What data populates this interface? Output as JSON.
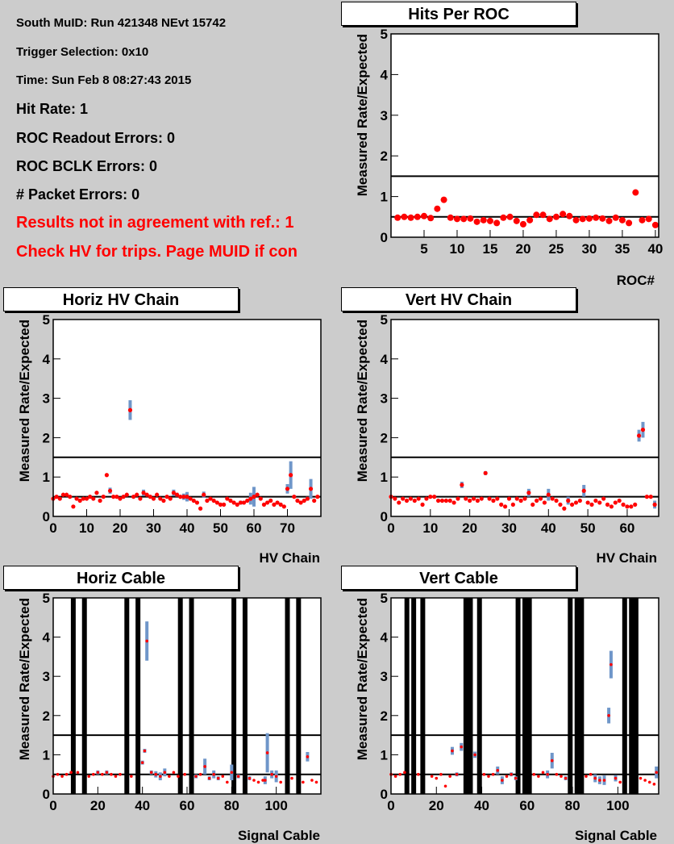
{
  "info": {
    "run_line": "South MuID: Run 421348 NEvt 15742",
    "trigger_line": "Trigger Selection: 0x10",
    "time_line": "Time: Sun Feb  8 08:27:43 2015",
    "hit_rate_line": "Hit Rate: 1",
    "roc_readout_errors_line": "ROC Readout Errors: 0",
    "roc_bclk_errors_line": "ROC BCLK Errors: 0",
    "packet_errors_line": "# Packet Errors: 0",
    "warning_line_1": "Results not in agreement with ref.: 1",
    "warning_line_2": "Check HV for trips. Page MUID if con"
  },
  "colors": {
    "marker": "#ff0000",
    "error_bar": "#6f96c9",
    "frame": "#000000",
    "background": "#cccccc"
  },
  "chart_data": [
    {
      "id": "hits_per_roc",
      "type": "scatter",
      "title": "Hits Per ROC",
      "xlabel": "ROC#",
      "ylabel": "Measured Rate/Expected",
      "xlim": [
        0,
        40.5
      ],
      "ylim": [
        0,
        5
      ],
      "xticks": [
        5,
        10,
        15,
        20,
        25,
        30,
        35,
        40
      ],
      "yticks": [
        0,
        1,
        2,
        3,
        4,
        5
      ],
      "ref_lines": [
        1.5,
        0.5
      ],
      "dead_channels": [],
      "x": [
        1,
        2,
        3,
        4,
        5,
        6,
        7,
        8,
        9,
        10,
        11,
        12,
        13,
        14,
        15,
        16,
        17,
        18,
        19,
        20,
        21,
        22,
        23,
        24,
        25,
        26,
        27,
        28,
        29,
        30,
        31,
        32,
        33,
        34,
        35,
        36,
        37,
        38,
        39,
        40
      ],
      "y": [
        0.48,
        0.5,
        0.48,
        0.5,
        0.52,
        0.47,
        0.7,
        0.92,
        0.48,
        0.45,
        0.45,
        0.46,
        0.38,
        0.42,
        0.4,
        0.35,
        0.48,
        0.5,
        0.4,
        0.32,
        0.42,
        0.55,
        0.55,
        0.45,
        0.5,
        0.57,
        0.52,
        0.42,
        0.45,
        0.46,
        0.48,
        0.46,
        0.4,
        0.48,
        0.42,
        0.35,
        1.1,
        0.42,
        0.45,
        0.3
      ],
      "err": []
    },
    {
      "id": "horiz_hv_chain",
      "type": "scatter",
      "title": "Horiz HV Chain",
      "xlabel": "HV Chain",
      "ylabel": "Measured Rate/Expected",
      "xlim": [
        0,
        80
      ],
      "ylim": [
        0,
        5
      ],
      "xticks": [
        0,
        10,
        20,
        30,
        40,
        50,
        60,
        70
      ],
      "yticks": [
        0,
        1,
        2,
        3,
        4,
        5
      ],
      "ref_lines": [
        1.5,
        0.5
      ],
      "dead_channels": [],
      "x": [
        0,
        1,
        2,
        3,
        4,
        5,
        6,
        7,
        8,
        9,
        10,
        11,
        12,
        13,
        14,
        15,
        16,
        17,
        18,
        19,
        20,
        21,
        22,
        23,
        24,
        25,
        26,
        27,
        28,
        29,
        30,
        31,
        32,
        33,
        34,
        35,
        36,
        37,
        38,
        39,
        40,
        41,
        42,
        43,
        44,
        45,
        46,
        47,
        48,
        49,
        50,
        51,
        52,
        53,
        54,
        55,
        56,
        57,
        58,
        59,
        60,
        61,
        62,
        63,
        64,
        65,
        66,
        67,
        68,
        69,
        70,
        71,
        72,
        73,
        74,
        75,
        76,
        77,
        78,
        79
      ],
      "y": [
        0.45,
        0.5,
        0.45,
        0.55,
        0.55,
        0.5,
        0.25,
        0.45,
        0.4,
        0.45,
        0.45,
        0.5,
        0.45,
        0.6,
        0.4,
        0.5,
        1.05,
        0.65,
        0.5,
        0.5,
        0.45,
        0.5,
        0.55,
        2.7,
        0.5,
        0.55,
        0.45,
        0.6,
        0.55,
        0.5,
        0.45,
        0.55,
        0.45,
        0.4,
        0.5,
        0.45,
        0.6,
        0.55,
        0.5,
        0.5,
        0.5,
        0.45,
        0.4,
        0.35,
        0.2,
        0.55,
        0.4,
        0.45,
        0.4,
        0.35,
        0.3,
        0.3,
        0.45,
        0.4,
        0.35,
        0.3,
        0.35,
        0.35,
        0.4,
        0.45,
        0.5,
        0.55,
        0.45,
        0.3,
        0.35,
        0.4,
        0.3,
        0.35,
        0.3,
        0.25,
        0.7,
        1.05,
        0.5,
        0.4,
        0.35,
        0.4,
        0.45,
        0.7,
        0.4,
        0.5
      ],
      "err": [
        0,
        0,
        0,
        0,
        0,
        0,
        0,
        0,
        0,
        0,
        0,
        0,
        0,
        0,
        0,
        0,
        0,
        0.08,
        0,
        0,
        0,
        0,
        0,
        0.25,
        0,
        0,
        0,
        0.08,
        0,
        0,
        0,
        0,
        0,
        0,
        0,
        0,
        0.08,
        0.05,
        0,
        0.08,
        0.12,
        0,
        0,
        0,
        0,
        0.08,
        0,
        0,
        0,
        0,
        0,
        0,
        0,
        0,
        0,
        0,
        0.05,
        0,
        0,
        0.15,
        0.25,
        0,
        0,
        0,
        0,
        0,
        0,
        0,
        0,
        0,
        0.12,
        0.35,
        0,
        0,
        0,
        0,
        0.05,
        0.25,
        0,
        0
      ]
    },
    {
      "id": "vert_hv_chain",
      "type": "scatter",
      "title": "Vert HV Chain",
      "xlabel": "HV Chain",
      "ylabel": "Measured Rate/Expected",
      "xlim": [
        0,
        68
      ],
      "ylim": [
        0,
        5
      ],
      "xticks": [
        0,
        10,
        20,
        30,
        40,
        50,
        60
      ],
      "yticks": [
        0,
        1,
        2,
        3,
        4,
        5
      ],
      "ref_lines": [
        1.5,
        0.5
      ],
      "dead_channels": [],
      "x": [
        0,
        1,
        2,
        3,
        4,
        5,
        6,
        7,
        8,
        9,
        10,
        11,
        12,
        13,
        14,
        15,
        16,
        17,
        18,
        19,
        20,
        21,
        22,
        23,
        24,
        25,
        26,
        27,
        28,
        29,
        30,
        31,
        32,
        33,
        34,
        35,
        36,
        37,
        38,
        39,
        40,
        41,
        42,
        43,
        44,
        45,
        46,
        47,
        48,
        49,
        50,
        51,
        52,
        53,
        54,
        55,
        56,
        57,
        58,
        59,
        60,
        61,
        62,
        63,
        64,
        65,
        66,
        67
      ],
      "y": [
        0.5,
        0.45,
        0.35,
        0.45,
        0.4,
        0.45,
        0.4,
        0.45,
        0.3,
        0.45,
        0.5,
        0.5,
        0.4,
        0.4,
        0.4,
        0.4,
        0.35,
        0.45,
        0.8,
        0.45,
        0.4,
        0.45,
        0.4,
        0.45,
        1.1,
        0.45,
        0.4,
        0.45,
        0.3,
        0.25,
        0.45,
        0.3,
        0.45,
        0.4,
        0.45,
        0.6,
        0.3,
        0.4,
        0.45,
        0.35,
        0.55,
        0.45,
        0.4,
        0.3,
        0.2,
        0.4,
        0.3,
        0.35,
        0.4,
        0.65,
        0.35,
        0.3,
        0.4,
        0.35,
        0.45,
        0.3,
        0.25,
        0.35,
        0.4,
        0.3,
        0.25,
        0.25,
        0.3,
        2.05,
        2.2,
        0.5,
        0.5,
        0.3
      ],
      "err": [
        0,
        0,
        0,
        0,
        0,
        0,
        0,
        0,
        0,
        0,
        0,
        0,
        0,
        0,
        0,
        0,
        0,
        0,
        0.08,
        0,
        0,
        0,
        0,
        0,
        0.05,
        0,
        0,
        0,
        0,
        0,
        0,
        0,
        0,
        0,
        0,
        0.1,
        0,
        0,
        0,
        0,
        0.15,
        0,
        0,
        0,
        0,
        0.1,
        0,
        0,
        0,
        0.15,
        0,
        0,
        0,
        0,
        0,
        0,
        0,
        0,
        0,
        0,
        0,
        0,
        0,
        0.15,
        0.2,
        0,
        0,
        0.1
      ]
    },
    {
      "id": "horiz_cable",
      "type": "scatter",
      "title": "Horiz Cable",
      "xlabel": "Signal Cable",
      "ylabel": "Measured Rate/Expected",
      "xlim": [
        0,
        120
      ],
      "ylim": [
        0,
        5
      ],
      "xticks": [
        0,
        20,
        40,
        60,
        80,
        100
      ],
      "yticks": [
        0,
        1,
        2,
        3,
        4,
        5
      ],
      "ref_lines": [
        1.5,
        0.5
      ],
      "dead_channels": [
        9,
        14,
        33,
        38,
        57,
        62,
        81,
        86,
        105,
        110
      ],
      "x": [
        0,
        2,
        4,
        6,
        8,
        11,
        16,
        18,
        20,
        22,
        24,
        26,
        28,
        30,
        35,
        40,
        41,
        42,
        44,
        46,
        48,
        50,
        52,
        54,
        56,
        59,
        64,
        66,
        68,
        70,
        72,
        74,
        76,
        78,
        80,
        83,
        88,
        90,
        92,
        94,
        95,
        96,
        98,
        100,
        102,
        107,
        112,
        114,
        116,
        118
      ],
      "y": [
        0.45,
        0.5,
        0.45,
        0.5,
        0.55,
        0.55,
        0.45,
        0.5,
        0.55,
        0.5,
        0.55,
        0.5,
        0.45,
        0.5,
        0.45,
        0.8,
        1.1,
        3.9,
        0.55,
        0.5,
        0.45,
        0.55,
        0.45,
        0.55,
        0.45,
        0.5,
        0.45,
        0.5,
        0.7,
        0.4,
        0.5,
        0.4,
        0.45,
        0.3,
        0.55,
        0.45,
        0.4,
        0.35,
        0.3,
        0.35,
        0.35,
        1.05,
        0.5,
        0.45,
        0.3,
        0.4,
        0.3,
        0.95,
        0.35,
        0.3
      ],
      "err": [
        0,
        0,
        0,
        0,
        0,
        0,
        0,
        0,
        0.05,
        0,
        0.05,
        0,
        0,
        0,
        0,
        0.05,
        0.05,
        0.5,
        0.05,
        0.08,
        0.1,
        0.1,
        0,
        0,
        0,
        0,
        0.05,
        0,
        0.2,
        0.05,
        0.1,
        0.05,
        0,
        0,
        0.2,
        0.05,
        0.05,
        0,
        0,
        0,
        0.1,
        0.5,
        0.1,
        0.15,
        0,
        0,
        0,
        0.12,
        0,
        0
      ]
    },
    {
      "id": "vert_cable",
      "type": "scatter",
      "title": "Vert Cable",
      "xlabel": "Signal Cable",
      "ylabel": "Measured Rate/Expected",
      "xlim": [
        0,
        118
      ],
      "ylim": [
        0,
        5
      ],
      "xticks": [
        0,
        20,
        40,
        60,
        80,
        100
      ],
      "yticks": [
        0,
        1,
        2,
        3,
        4,
        5
      ],
      "ref_lines": [
        1.5,
        0.5
      ],
      "dead_channels": [
        7,
        10,
        14,
        33,
        35,
        39,
        56,
        59,
        61,
        79,
        82,
        84,
        103,
        106,
        108
      ],
      "x": [
        0,
        2,
        4,
        6,
        12,
        18,
        20,
        22,
        24,
        26,
        27,
        29,
        31,
        37,
        41,
        43,
        45,
        47,
        49,
        51,
        53,
        55,
        63,
        65,
        67,
        69,
        71,
        73,
        75,
        77,
        86,
        88,
        90,
        92,
        94,
        96,
        97,
        99,
        101,
        110,
        112,
        114,
        116,
        117
      ],
      "y": [
        0.5,
        0.45,
        0.5,
        0.55,
        0.5,
        0.45,
        0.4,
        0.5,
        0.2,
        0.45,
        1.1,
        0.5,
        1.2,
        1.0,
        0.5,
        0.45,
        0.5,
        0.6,
        0.35,
        0.45,
        0.5,
        0.4,
        0.5,
        0.45,
        0.55,
        0.5,
        0.85,
        0.5,
        0.45,
        0.4,
        0.45,
        0.5,
        0.4,
        0.35,
        0.35,
        2.0,
        3.3,
        0.4,
        0.3,
        0.4,
        0.35,
        0.3,
        0.25,
        0.55
      ],
      "err": [
        0,
        0,
        0,
        0,
        0,
        0,
        0,
        0,
        0,
        0,
        0.1,
        0.05,
        0.1,
        0.08,
        0,
        0,
        0,
        0.1,
        0.1,
        0,
        0.05,
        0.05,
        0,
        0,
        0,
        0.1,
        0.2,
        0,
        0,
        0.05,
        0,
        0,
        0.1,
        0.1,
        0.12,
        0.2,
        0.35,
        0.08,
        0,
        0,
        0,
        0,
        0,
        0.15
      ]
    }
  ]
}
